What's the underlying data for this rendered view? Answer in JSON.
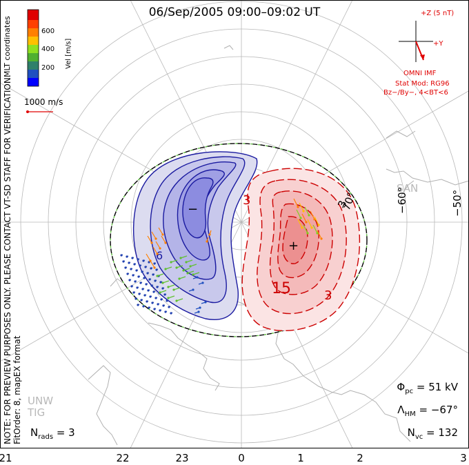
{
  "title": "06/Sep/2005 09:00–09:02 UT",
  "note_lines": [
    "NOTE: FOR PREVIEW PURPOSES ONLY. PLEASE CONTACT VT-SD STAFF FOR VERIFICATION.",
    "FitOrder: 8, mapEX format"
  ],
  "coordinate_label": "MLT coordinates",
  "colorbar": {
    "label": "Vel [m/s]",
    "ticks": [
      "600",
      "400",
      "200"
    ],
    "colors": [
      "#0000ff",
      "#2060c8",
      "#3a8a6a",
      "#4aa040",
      "#80d020",
      "#ffd000",
      "#ff8000",
      "#ff4000",
      "#e00000"
    ]
  },
  "scale_vector_label": "1000 m/s",
  "imf": {
    "z_label": "+Z (5 nT)",
    "y_label": "+Y",
    "source": "OMNI IMF",
    "stat_model": "Stat Mod: RG96",
    "conditions": "Bz−/By−, 4<BT<6",
    "color": "#e00000"
  },
  "mlt_ticks": [
    "21",
    "22",
    "23",
    "0",
    "1",
    "2",
    "3"
  ],
  "latitude_labels": [
    "−60°",
    "−50°",
    "70°"
  ],
  "contour_labels": [
    "3",
    "3",
    "15",
    "3",
    "6"
  ],
  "station_labels": [
    "SAN",
    "UNW",
    "TIG"
  ],
  "stats": {
    "phi_pc": {
      "symbol": "Φ",
      "sub": "pc",
      "value": "= 51 kV"
    },
    "lambda_hm": {
      "symbol": "Λ",
      "sub": "HM",
      "value": "= −67°"
    },
    "n_vc": {
      "symbol": "N",
      "sub": "vc",
      "value": "= 132"
    }
  },
  "n_rads": {
    "symbol": "N",
    "sub": "rads",
    "value": "= 3"
  },
  "colors": {
    "negative_cell": "#2020a0",
    "positive_cell": "#c00000",
    "boundary": "#40c040"
  }
}
